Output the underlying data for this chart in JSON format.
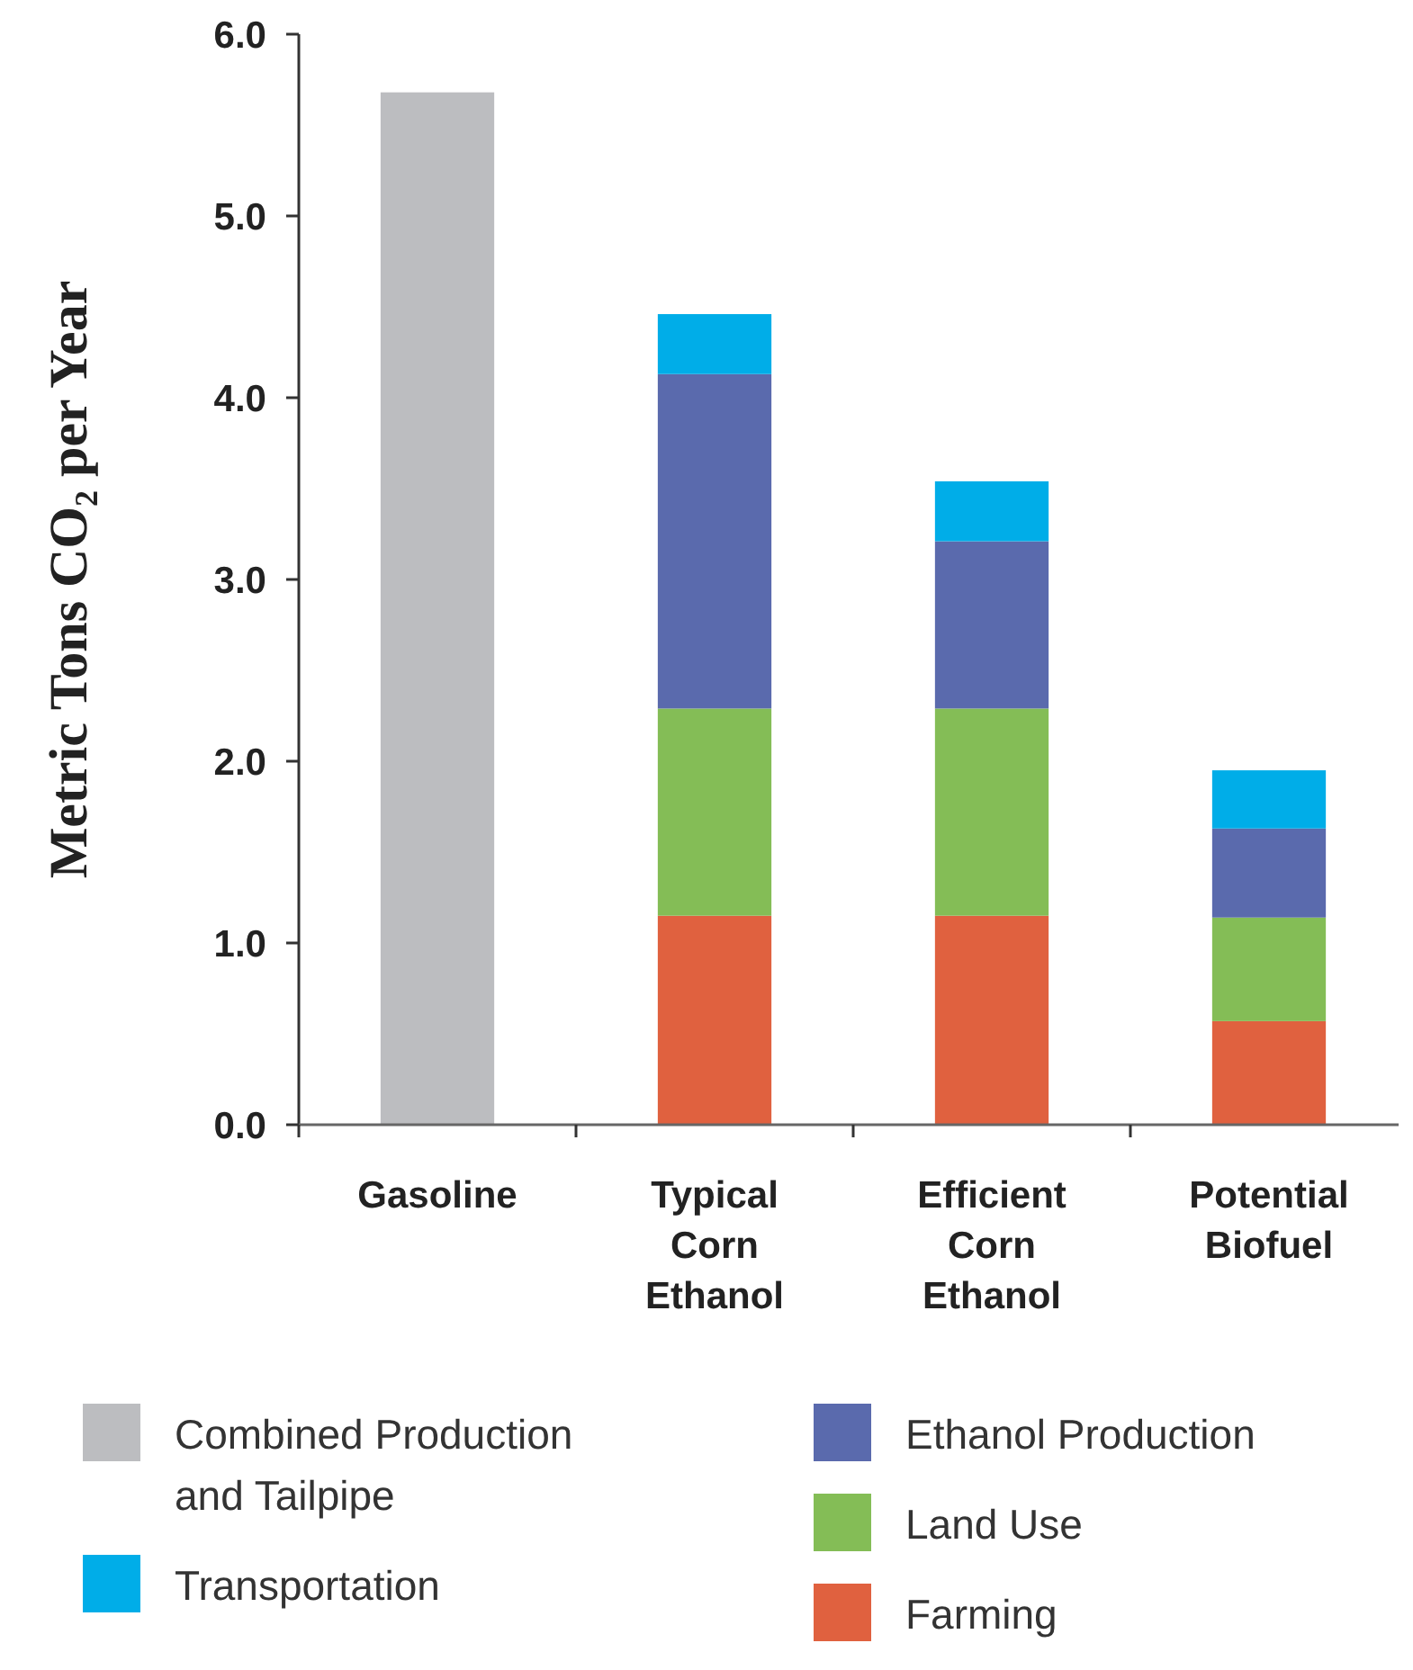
{
  "chart_data": {
    "type": "bar",
    "ylabel": "Metric Tons CO₂ per Year",
    "categories": [
      "Gasoline",
      "Typical Corn Ethanol",
      "Efficient Corn Ethanol",
      "Potential Biofuel"
    ],
    "stacked": true,
    "ylim": [
      0,
      6
    ],
    "yticks": [
      {
        "value": 0,
        "label": "0.0"
      },
      {
        "value": 1,
        "label": "1.0"
      },
      {
        "value": 2,
        "label": "2.0"
      },
      {
        "value": 3,
        "label": "3.0"
      },
      {
        "value": 4,
        "label": "4.0"
      },
      {
        "value": 5,
        "label": "5.0"
      },
      {
        "value": 6,
        "label": "6.0"
      }
    ],
    "grid": false,
    "legend": "bottom",
    "series": [
      {
        "name": "Combined Production and Tailpipe",
        "color": "#bcbdc0",
        "values": [
          5.68,
          null,
          null,
          null
        ]
      },
      {
        "name": "Farming",
        "color": "#e0613f",
        "values": [
          null,
          1.15,
          1.15,
          0.57
        ]
      },
      {
        "name": "Land Use",
        "color": "#84bd56",
        "values": [
          null,
          1.14,
          1.14,
          0.57
        ]
      },
      {
        "name": "Ethanol Production",
        "color": "#5a6aad",
        "values": [
          null,
          1.84,
          0.92,
          0.49
        ]
      },
      {
        "name": "Transportation",
        "color": "#00ade8",
        "values": [
          null,
          0.33,
          0.33,
          0.32
        ]
      }
    ]
  }
}
